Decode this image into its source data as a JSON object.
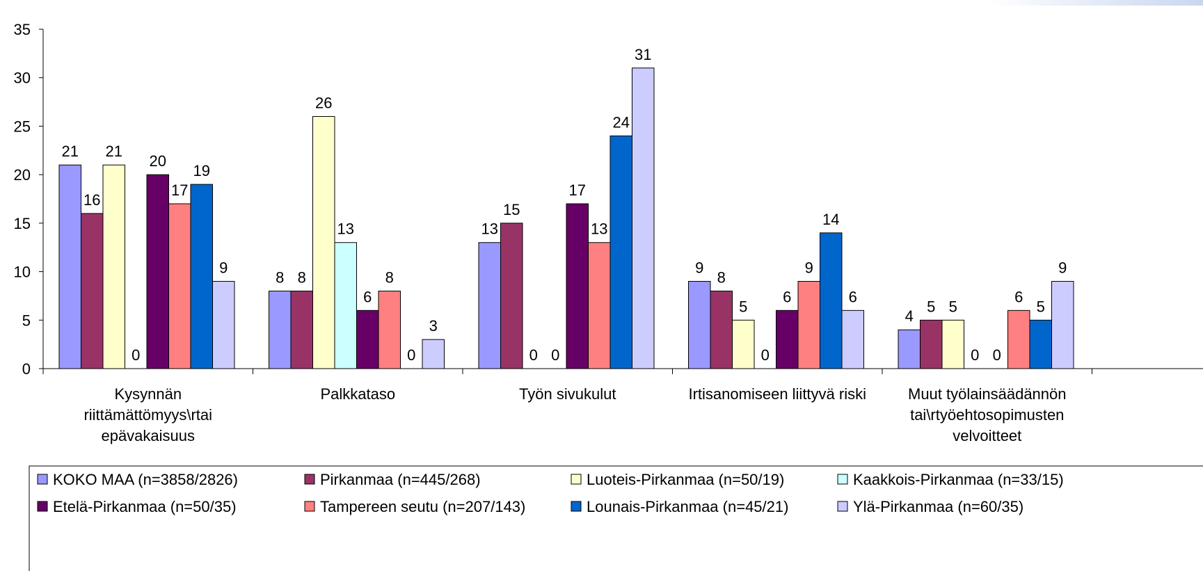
{
  "chart_data": {
    "type": "bar",
    "categories": [
      "Kysynnän\nriittämättömyys\\rtai\nepävakaisuus",
      "Palkkataso",
      "Työn sivukulut",
      "Irtisanomiseen liittyvä riski",
      "Muut työlainsäädännön\ntai\\rtyöehtosopimusten\nvelvoitteet"
    ],
    "series": [
      {
        "name": "KOKO MAA (n=3858/2826)",
        "color": "#9999ff",
        "values": [
          21,
          8,
          13,
          9,
          4
        ]
      },
      {
        "name": "Pirkanmaa (n=445/268)",
        "color": "#993366",
        "values": [
          16,
          8,
          15,
          8,
          5
        ]
      },
      {
        "name": "Luoteis-Pirkanmaa (n=50/19)",
        "color": "#ffffcc",
        "values": [
          21,
          26,
          0,
          5,
          5
        ]
      },
      {
        "name": "Kaakkois-Pirkanmaa (n=33/15)",
        "color": "#ccffff",
        "values": [
          0,
          13,
          0,
          0,
          0
        ]
      },
      {
        "name": "Etelä-Pirkanmaa (n=50/35)",
        "color": "#660066",
        "values": [
          20,
          6,
          17,
          6,
          0
        ]
      },
      {
        "name": "Tampereen seutu (n=207/143)",
        "color": "#ff8080",
        "values": [
          17,
          8,
          13,
          9,
          6
        ]
      },
      {
        "name": "Lounais-Pirkanmaa (n=45/21)",
        "color": "#0066cc",
        "values": [
          19,
          0,
          24,
          14,
          5
        ]
      },
      {
        "name": "Ylä-Pirkanmaa (n=60/35)",
        "color": "#ccccff",
        "values": [
          9,
          3,
          31,
          6,
          9
        ]
      }
    ],
    "ylim": [
      0,
      35
    ],
    "yticks": [
      0,
      5,
      10,
      15,
      20,
      25,
      30,
      35
    ],
    "grid": false,
    "data_labels": true,
    "legend_position": "bottom",
    "title": "",
    "xlabel": "",
    "ylabel": ""
  }
}
